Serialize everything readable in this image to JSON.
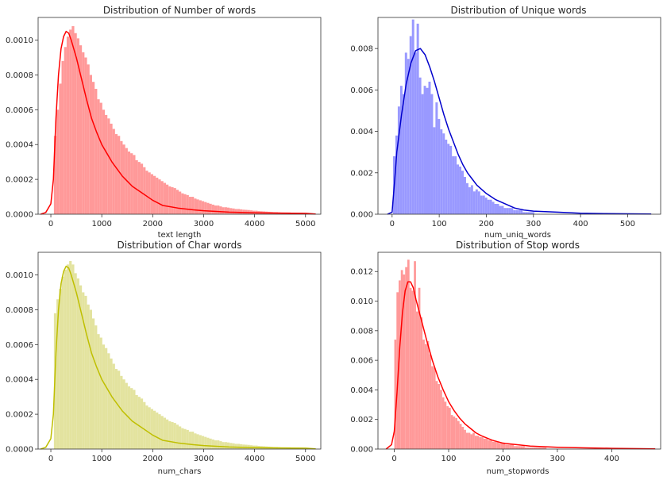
{
  "chart_data": [
    {
      "type": "bar",
      "title": "Distribution of Number of words",
      "xlabel": "text length",
      "ylabel": "",
      "xlim": [
        -250,
        5300
      ],
      "ylim": [
        0,
        0.00113
      ],
      "xticks": [
        0,
        1000,
        2000,
        3000,
        4000,
        5000
      ],
      "yticks": [
        0.0,
        0.0002,
        0.0004,
        0.0006,
        0.0008,
        0.001
      ],
      "ytick_decimals": 4,
      "bar_color": "#ff9999",
      "kde_color": "#ff0000",
      "grid": false,
      "kde": [
        [
          -200,
          0
        ],
        [
          -100,
          1e-05
        ],
        [
          0,
          6e-05
        ],
        [
          50,
          0.0002
        ],
        [
          100,
          0.00055
        ],
        [
          150,
          0.0008
        ],
        [
          200,
          0.00095
        ],
        [
          250,
          0.00102
        ],
        [
          300,
          0.00105
        ],
        [
          350,
          0.00104
        ],
        [
          400,
          0.001
        ],
        [
          500,
          0.0009
        ],
        [
          600,
          0.00078
        ],
        [
          700,
          0.00066
        ],
        [
          800,
          0.00055
        ],
        [
          900,
          0.00047
        ],
        [
          1000,
          0.0004
        ],
        [
          1100,
          0.00035
        ],
        [
          1200,
          0.0003
        ],
        [
          1300,
          0.00026
        ],
        [
          1400,
          0.00022
        ],
        [
          1500,
          0.00019
        ],
        [
          1600,
          0.00016
        ],
        [
          1800,
          0.00012
        ],
        [
          2000,
          8e-05
        ],
        [
          2200,
          5e-05
        ],
        [
          2500,
          3.5e-05
        ],
        [
          2800,
          2.5e-05
        ],
        [
          3000,
          2e-05
        ],
        [
          3500,
          1.2e-05
        ],
        [
          4000,
          8e-06
        ],
        [
          4500,
          6e-06
        ],
        [
          5000,
          5e-06
        ],
        [
          5200,
          1e-06
        ]
      ],
      "bins": {
        "start": 60,
        "width": 50,
        "values": [
          0.00045,
          0.0006,
          0.00075,
          0.00088,
          0.00096,
          0.00102,
          0.00106,
          0.00108,
          0.00104,
          0.00101,
          0.00097,
          0.00093,
          0.0009,
          0.00086,
          0.0008,
          0.00076,
          0.00072,
          0.00066,
          0.00064,
          0.0006,
          0.00057,
          0.00055,
          0.00052,
          0.00049,
          0.00046,
          0.00045,
          0.00042,
          0.0004,
          0.00038,
          0.00036,
          0.00035,
          0.00034,
          0.00031,
          0.0003,
          0.00029,
          0.00027,
          0.00025,
          0.00024,
          0.00023,
          0.00022,
          0.00021,
          0.0002,
          0.00019,
          0.00018,
          0.00017,
          0.00016,
          0.000155,
          0.00015,
          0.00014,
          0.00013,
          0.00012,
          0.000115,
          0.00011,
          0.0001,
          0.0001,
          9e-05,
          8.5e-05,
          8e-05,
          7.5e-05,
          7e-05,
          6.5e-05,
          6e-05,
          5.5e-05,
          5e-05,
          5e-05,
          4.5e-05,
          4e-05,
          4e-05,
          3.8e-05,
          3.5e-05,
          3.3e-05,
          3e-05,
          3e-05,
          2.8e-05,
          2.6e-05,
          2.5e-05,
          2.4e-05,
          2.2e-05,
          2e-05,
          2e-05,
          1.8e-05,
          1.7e-05,
          1.6e-05,
          1.5e-05,
          1.4e-05,
          1.3e-05,
          1.2e-05,
          1.2e-05,
          1.1e-05,
          1e-05,
          1e-05,
          1e-05,
          1e-05,
          9e-06,
          9e-06,
          8e-06,
          8e-06,
          8e-06,
          7e-06,
          7e-06
        ]
      }
    },
    {
      "type": "bar",
      "title": "Distribution of Unique words",
      "xlabel": "num_uniq_words",
      "ylabel": "",
      "xlim": [
        -30,
        570
      ],
      "ylim": [
        0,
        0.0095
      ],
      "xticks": [
        0,
        100,
        200,
        300,
        400,
        500
      ],
      "yticks": [
        0.0,
        0.002,
        0.004,
        0.006,
        0.008
      ],
      "ytick_decimals": 3,
      "bar_color": "#9999ff",
      "kde_color": "#0000cc",
      "grid": false,
      "kde": [
        [
          -10,
          0
        ],
        [
          0,
          0.0001
        ],
        [
          5,
          0.0015
        ],
        [
          10,
          0.003
        ],
        [
          20,
          0.0048
        ],
        [
          30,
          0.0063
        ],
        [
          40,
          0.0073
        ],
        [
          50,
          0.0079
        ],
        [
          60,
          0.008
        ],
        [
          70,
          0.0077
        ],
        [
          80,
          0.0071
        ],
        [
          90,
          0.0064
        ],
        [
          100,
          0.0056
        ],
        [
          110,
          0.0048
        ],
        [
          120,
          0.0041
        ],
        [
          130,
          0.0035
        ],
        [
          140,
          0.0029
        ],
        [
          150,
          0.0024
        ],
        [
          160,
          0.002
        ],
        [
          170,
          0.0017
        ],
        [
          180,
          0.0014
        ],
        [
          190,
          0.0012
        ],
        [
          200,
          0.001
        ],
        [
          220,
          0.0007
        ],
        [
          240,
          0.0005
        ],
        [
          260,
          0.0003
        ],
        [
          280,
          0.0002
        ],
        [
          300,
          0.00015
        ],
        [
          350,
          0.0001
        ],
        [
          400,
          5e-05
        ],
        [
          450,
          3e-05
        ],
        [
          500,
          2e-05
        ],
        [
          550,
          1e-05
        ]
      ],
      "bins": {
        "start": 2,
        "width": 5,
        "values": [
          0.0028,
          0.0038,
          0.0052,
          0.0062,
          0.0058,
          0.0078,
          0.0075,
          0.0086,
          0.0094,
          0.0078,
          0.0092,
          0.0066,
          0.0058,
          0.0062,
          0.0061,
          0.0064,
          0.0058,
          0.0042,
          0.0054,
          0.0046,
          0.0041,
          0.0039,
          0.0036,
          0.0034,
          0.0033,
          0.0028,
          0.0028,
          0.0024,
          0.0023,
          0.0021,
          0.0018,
          0.0015,
          0.0013,
          0.0014,
          0.0011,
          0.0012,
          0.0011,
          0.0009,
          0.0009,
          0.0008,
          0.0007,
          0.0007,
          0.0006,
          0.0005,
          0.0005,
          0.0004,
          0.0004,
          0.0003,
          0.0003,
          0.0003,
          0.0003,
          0.0002,
          0.0002,
          0.0002,
          0.0002,
          0.0001,
          0.0001,
          0.0001,
          0.0001,
          0.0001
        ]
      }
    },
    {
      "type": "bar",
      "title": "Distribution of Char words",
      "xlabel": "num_chars",
      "ylabel": "",
      "xlim": [
        -250,
        5300
      ],
      "ylim": [
        0,
        0.00113
      ],
      "xticks": [
        0,
        1000,
        2000,
        3000,
        4000,
        5000
      ],
      "yticks": [
        0.0,
        0.0002,
        0.0004,
        0.0006,
        0.0008,
        0.001
      ],
      "ytick_decimals": 4,
      "bar_color": "#e3e39f",
      "kde_color": "#bfbf00",
      "grid": false,
      "kde": [
        [
          -200,
          0
        ],
        [
          -100,
          1e-05
        ],
        [
          0,
          6e-05
        ],
        [
          50,
          0.0002
        ],
        [
          100,
          0.00055
        ],
        [
          150,
          0.0008
        ],
        [
          200,
          0.00095
        ],
        [
          250,
          0.00102
        ],
        [
          300,
          0.00105
        ],
        [
          350,
          0.00104
        ],
        [
          400,
          0.001
        ],
        [
          500,
          0.0009
        ],
        [
          600,
          0.00078
        ],
        [
          700,
          0.00066
        ],
        [
          800,
          0.00055
        ],
        [
          900,
          0.00047
        ],
        [
          1000,
          0.0004
        ],
        [
          1100,
          0.00035
        ],
        [
          1200,
          0.0003
        ],
        [
          1300,
          0.00026
        ],
        [
          1400,
          0.00022
        ],
        [
          1500,
          0.00019
        ],
        [
          1600,
          0.00016
        ],
        [
          1800,
          0.00012
        ],
        [
          2000,
          8e-05
        ],
        [
          2200,
          5e-05
        ],
        [
          2500,
          3.5e-05
        ],
        [
          2800,
          2.5e-05
        ],
        [
          3000,
          2e-05
        ],
        [
          3500,
          1.2e-05
        ],
        [
          4000,
          8e-06
        ],
        [
          4500,
          6e-06
        ],
        [
          5000,
          5e-06
        ],
        [
          5200,
          1e-06
        ]
      ],
      "bins": {
        "start": 60,
        "width": 50,
        "values": [
          0.00078,
          0.00086,
          0.00092,
          0.00099,
          0.00103,
          0.00106,
          0.00108,
          0.00106,
          0.00101,
          0.00098,
          0.00094,
          0.0009,
          0.00088,
          0.00083,
          0.0008,
          0.00075,
          0.00071,
          0.00066,
          0.00064,
          0.0006,
          0.00058,
          0.00055,
          0.00052,
          0.00049,
          0.00046,
          0.00045,
          0.00042,
          0.0004,
          0.00038,
          0.00036,
          0.00035,
          0.00034,
          0.00031,
          0.0003,
          0.00029,
          0.00027,
          0.00025,
          0.00024,
          0.00023,
          0.00022,
          0.00021,
          0.0002,
          0.00019,
          0.00018,
          0.00017,
          0.00016,
          0.000155,
          0.00015,
          0.00014,
          0.00013,
          0.00012,
          0.000115,
          0.00011,
          0.0001,
          0.0001,
          9e-05,
          8.5e-05,
          8e-05,
          7.5e-05,
          7e-05,
          6.5e-05,
          6e-05,
          5.5e-05,
          5e-05,
          5e-05,
          4.5e-05,
          4e-05,
          4e-05,
          3.8e-05,
          3.5e-05,
          3.3e-05,
          3e-05,
          3e-05,
          2.8e-05,
          2.6e-05,
          2.5e-05,
          2.4e-05,
          2.2e-05,
          2e-05,
          2e-05,
          1.8e-05,
          1.7e-05,
          1.6e-05,
          1.5e-05,
          1.4e-05,
          1.3e-05,
          1.2e-05,
          1.2e-05,
          1.1e-05,
          1e-05,
          1e-05,
          1e-05,
          1e-05,
          9e-06,
          9e-06,
          8e-06,
          8e-06,
          8e-06,
          7e-06,
          7e-06
        ]
      }
    },
    {
      "type": "bar",
      "title": "Distribution of Stop words",
      "xlabel": "num_stopwords",
      "ylabel": "",
      "xlim": [
        -30,
        490
      ],
      "ylim": [
        0,
        0.0133
      ],
      "xticks": [
        0,
        100,
        200,
        300,
        400
      ],
      "yticks": [
        0.0,
        0.002,
        0.004,
        0.006,
        0.008,
        0.01,
        0.012
      ],
      "ytick_decimals": 3,
      "bar_color": "#ff9999",
      "kde_color": "#ff0000",
      "grid": false,
      "kde": [
        [
          -15,
          0
        ],
        [
          -5,
          0.0003
        ],
        [
          0,
          0.0012
        ],
        [
          5,
          0.0038
        ],
        [
          10,
          0.0068
        ],
        [
          15,
          0.0092
        ],
        [
          20,
          0.0107
        ],
        [
          25,
          0.0113
        ],
        [
          30,
          0.0113
        ],
        [
          35,
          0.0109
        ],
        [
          40,
          0.0101
        ],
        [
          50,
          0.0087
        ],
        [
          60,
          0.0073
        ],
        [
          70,
          0.006
        ],
        [
          80,
          0.0049
        ],
        [
          90,
          0.004
        ],
        [
          100,
          0.0032
        ],
        [
          110,
          0.0026
        ],
        [
          120,
          0.0021
        ],
        [
          130,
          0.0017
        ],
        [
          140,
          0.0014
        ],
        [
          150,
          0.0011
        ],
        [
          160,
          0.0009
        ],
        [
          180,
          0.0006
        ],
        [
          200,
          0.0004
        ],
        [
          250,
          0.0002
        ],
        [
          300,
          0.00012
        ],
        [
          350,
          8e-05
        ],
        [
          400,
          5e-05
        ],
        [
          450,
          3e-05
        ],
        [
          480,
          1e-05
        ]
      ],
      "bins": {
        "start": 0,
        "width": 4,
        "values": [
          0.0074,
          0.0106,
          0.0114,
          0.0121,
          0.0118,
          0.0123,
          0.0128,
          0.0109,
          0.0107,
          0.0127,
          0.0093,
          0.0109,
          0.0089,
          0.0074,
          0.0071,
          0.0073,
          0.0064,
          0.0056,
          0.0055,
          0.0046,
          0.0044,
          0.004,
          0.0035,
          0.0032,
          0.0029,
          0.0028,
          0.0023,
          0.0022,
          0.0021,
          0.0019,
          0.0017,
          0.0015,
          0.0013,
          0.0011,
          0.0011,
          0.001,
          0.0011,
          0.0009,
          0.0009,
          0.0008,
          0.0008,
          0.0007,
          0.0007,
          0.0006,
          0.0006,
          0.0005,
          0.0005,
          0.0005,
          0.0004,
          0.0004,
          0.0004,
          0.0003,
          0.0003,
          0.0003,
          0.0003,
          0.0002,
          0.0002,
          0.0002,
          0.0002,
          0.0002,
          0.0001,
          0.0001,
          0.0001,
          0.0001,
          0.0001,
          0.0001,
          0.0001,
          0.0001,
          0.0001,
          0.0001
        ]
      }
    }
  ]
}
